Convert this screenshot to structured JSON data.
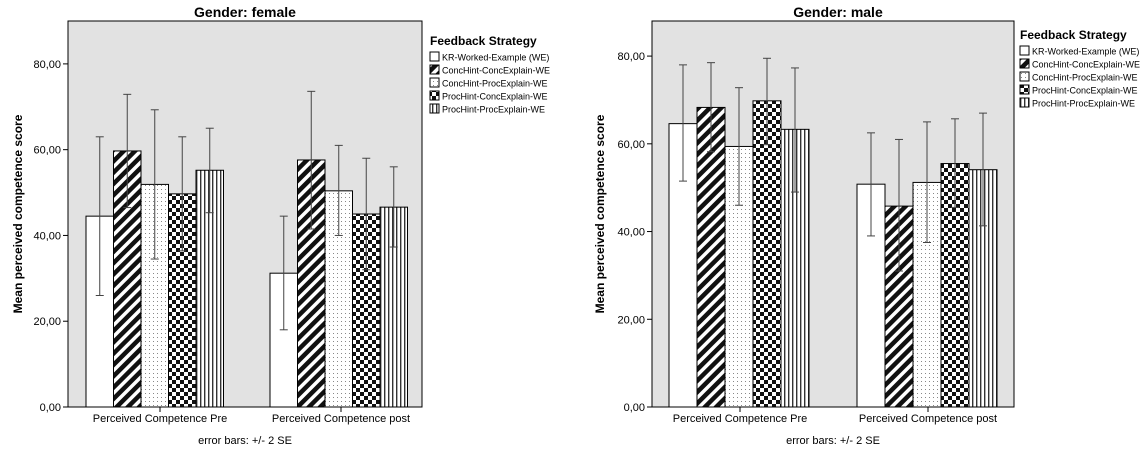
{
  "chart_data": [
    {
      "type": "bar",
      "title": "Gender: female",
      "xlabel": "error bars: +/- 2 SE",
      "ylabel": "Mean perceived competence score",
      "ylim": [
        0,
        90
      ],
      "yticks": [
        "0,00",
        "20,00",
        "40,00",
        "60,00",
        "80,00"
      ],
      "grid": false,
      "legend_title": "Feedback Strategy",
      "legend_position": "right",
      "categories": [
        "Perceived Competence Pre",
        "Perceived Competence post"
      ],
      "series": [
        {
          "name": "KR-Worked-Example (WE)",
          "pattern": "blank",
          "values": [
            44.5,
            31.2
          ],
          "err_low": [
            26.0,
            18.0
          ],
          "err_high": [
            63.0,
            44.5
          ]
        },
        {
          "name": "ConcHint-ConcExplain-WE",
          "pattern": "diagonal",
          "values": [
            59.7,
            57.6
          ],
          "err_low": [
            46.5,
            41.5
          ],
          "err_high": [
            72.9,
            73.6
          ]
        },
        {
          "name": "ConcHint-ProcExplain-WE",
          "pattern": "dots",
          "values": [
            51.9,
            50.4
          ],
          "err_low": [
            34.5,
            40.0
          ],
          "err_high": [
            69.3,
            61.0
          ]
        },
        {
          "name": "ProcHint-ConcExplain-WE",
          "pattern": "checker",
          "values": [
            49.7,
            45.0
          ],
          "err_low": [
            36.4,
            32.0
          ],
          "err_high": [
            63.0,
            58.0
          ]
        },
        {
          "name": "ProcHint-ProcExplain-WE",
          "pattern": "vertical",
          "values": [
            55.2,
            46.6
          ],
          "err_low": [
            45.3,
            37.3
          ],
          "err_high": [
            65.0,
            56.0
          ]
        }
      ]
    },
    {
      "type": "bar",
      "title": "Gender: male",
      "xlabel": "error bars: +/- 2 SE",
      "ylabel": "Mean perceived competence score",
      "ylim": [
        0,
        88
      ],
      "yticks": [
        "0,00",
        "20,00",
        "40,00",
        "60,00",
        "80,00"
      ],
      "grid": false,
      "legend_title": "Feedback Strategy",
      "legend_position": "right",
      "categories": [
        "Perceived Competence Pre",
        "Perceived Competence post"
      ],
      "series": [
        {
          "name": "KR-Worked-Example (WE)",
          "pattern": "blank",
          "values": [
            64.6,
            50.8
          ],
          "err_low": [
            51.5,
            39.0
          ],
          "err_high": [
            78.0,
            62.5
          ]
        },
        {
          "name": "ConcHint-ConcExplain-WE",
          "pattern": "diagonal",
          "values": [
            68.3,
            45.8
          ],
          "err_low": [
            58.2,
            31.0
          ],
          "err_high": [
            78.5,
            61.0
          ]
        },
        {
          "name": "ConcHint-ProcExplain-WE",
          "pattern": "dots",
          "values": [
            59.4,
            51.2
          ],
          "err_low": [
            46.0,
            37.5
          ],
          "err_high": [
            72.8,
            65.0
          ]
        },
        {
          "name": "ProcHint-ConcExplain-WE",
          "pattern": "checker",
          "values": [
            69.8,
            55.5
          ],
          "err_low": [
            59.8,
            45.5
          ],
          "err_high": [
            79.5,
            65.7
          ]
        },
        {
          "name": "ProcHint-ProcExplain-WE",
          "pattern": "vertical",
          "values": [
            63.3,
            54.1
          ],
          "err_low": [
            49.0,
            41.3
          ],
          "err_high": [
            77.3,
            67.0
          ]
        }
      ]
    }
  ]
}
